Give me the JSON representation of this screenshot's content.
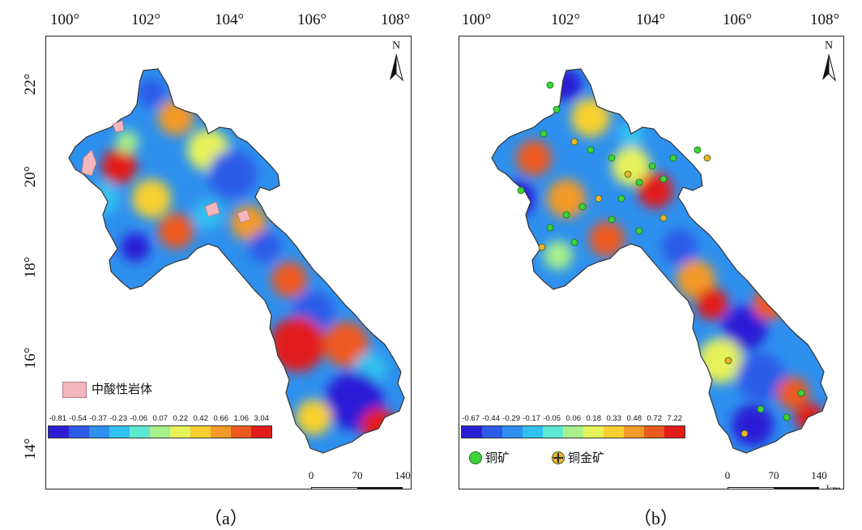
{
  "x_ticks": [
    "100°",
    "102°",
    "104°",
    "106°",
    "108°"
  ],
  "y_ticks": [
    "22°",
    "20°",
    "18°",
    "16°",
    "14°"
  ],
  "north_label": "N",
  "scale_bar": {
    "labels": [
      "0",
      "70",
      "140"
    ],
    "unit": "km"
  },
  "colors": [
    "#2b1fd6",
    "#2b5be8",
    "#2e90ee",
    "#31c1ef",
    "#5ee8d0",
    "#a6f08a",
    "#e6f25a",
    "#f7d02f",
    "#f39a28",
    "#ee5a20",
    "#e21b1b"
  ],
  "panel_a": {
    "caption": "（a）",
    "legend_label": "中酸性岩体",
    "legend_color": "#f4b6bd",
    "colorbar_values": [
      "-0.81",
      "-0.54",
      "-0.37",
      "-0.23",
      "-0.06",
      "0.07",
      "0.22",
      "0.42",
      "0.66",
      "1.06",
      "3.04"
    ]
  },
  "panel_b": {
    "caption": "（b）",
    "colorbar_values": [
      "-0.67",
      "-0.44",
      "-0.29",
      "-0.17",
      "-0.05",
      "0.06",
      "0.18",
      "0.33",
      "0.48",
      "0.72",
      "7.22"
    ],
    "legend": [
      {
        "label": "铜矿",
        "color": "#39d43a",
        "icon": "green-circle-icon"
      },
      {
        "label": "铜金矿",
        "color": "#f0b030",
        "icon": "orange-crossed-circle-icon"
      }
    ]
  }
}
